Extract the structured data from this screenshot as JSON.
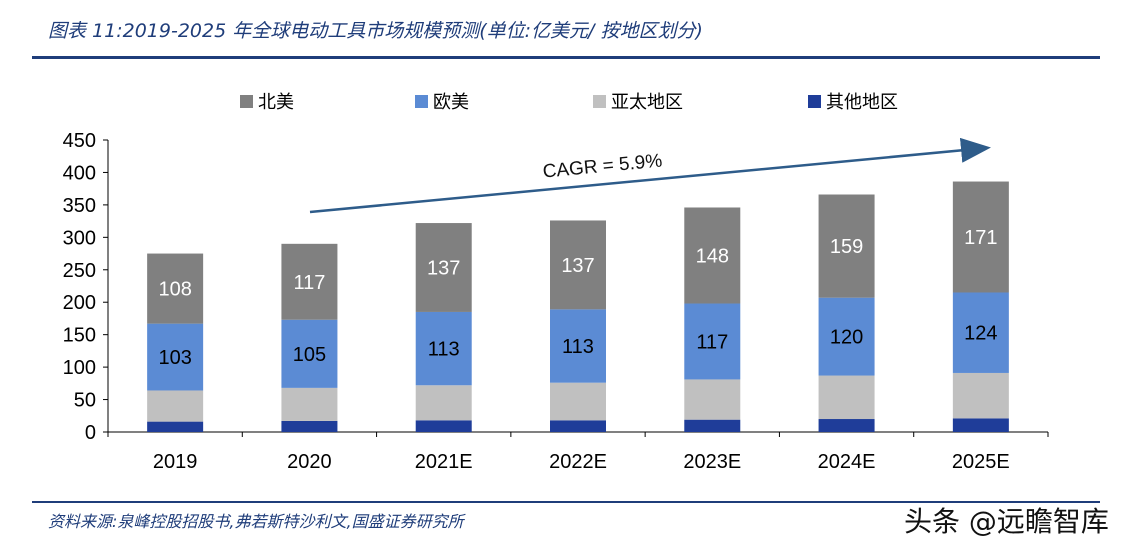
{
  "header": {
    "title": "图表 11:2019-2025 年全球电动工具市场规模预测(单位:亿美元/ 按地区划分)"
  },
  "footer": {
    "source": "资料来源:泉峰控股招股书,弗若斯特沙利文,国盛证券研究所",
    "watermark": "头条 @远瞻智库"
  },
  "colors": {
    "north_america": "#808080",
    "europe": "#5b8bd4",
    "asia_pacific": "#c0c0c0",
    "other": "#1f3d99",
    "arrow": "#2e5c8a"
  },
  "chart_data": {
    "type": "bar",
    "stacked": true,
    "categories": [
      "2019",
      "2020",
      "2021E",
      "2022E",
      "2023E",
      "2024E",
      "2025E"
    ],
    "series": [
      {
        "name": "其他地区",
        "color": "#1f3d99",
        "values": [
          16,
          17,
          18,
          18,
          19,
          20,
          21
        ],
        "labels": false
      },
      {
        "name": "亚太地区",
        "color": "#c0c0c0",
        "values": [
          48,
          51,
          54,
          58,
          62,
          67,
          70
        ],
        "labels": false
      },
      {
        "name": "欧美",
        "color": "#5b8bd4",
        "values": [
          103,
          105,
          113,
          113,
          117,
          120,
          124
        ],
        "labels": true
      },
      {
        "name": "北美",
        "color": "#808080",
        "values": [
          108,
          117,
          137,
          137,
          148,
          159,
          171
        ],
        "labels": true
      }
    ],
    "legend_order": [
      "北美",
      "欧美",
      "亚太地区",
      "其他地区"
    ],
    "legend_position": "top",
    "annotation": "CAGR = 5.9%",
    "yticks": [
      0,
      50,
      100,
      150,
      200,
      250,
      300,
      350,
      400,
      450
    ],
    "ylim": [
      0,
      450
    ],
    "xlabel": "",
    "ylabel": "",
    "grid": false
  }
}
